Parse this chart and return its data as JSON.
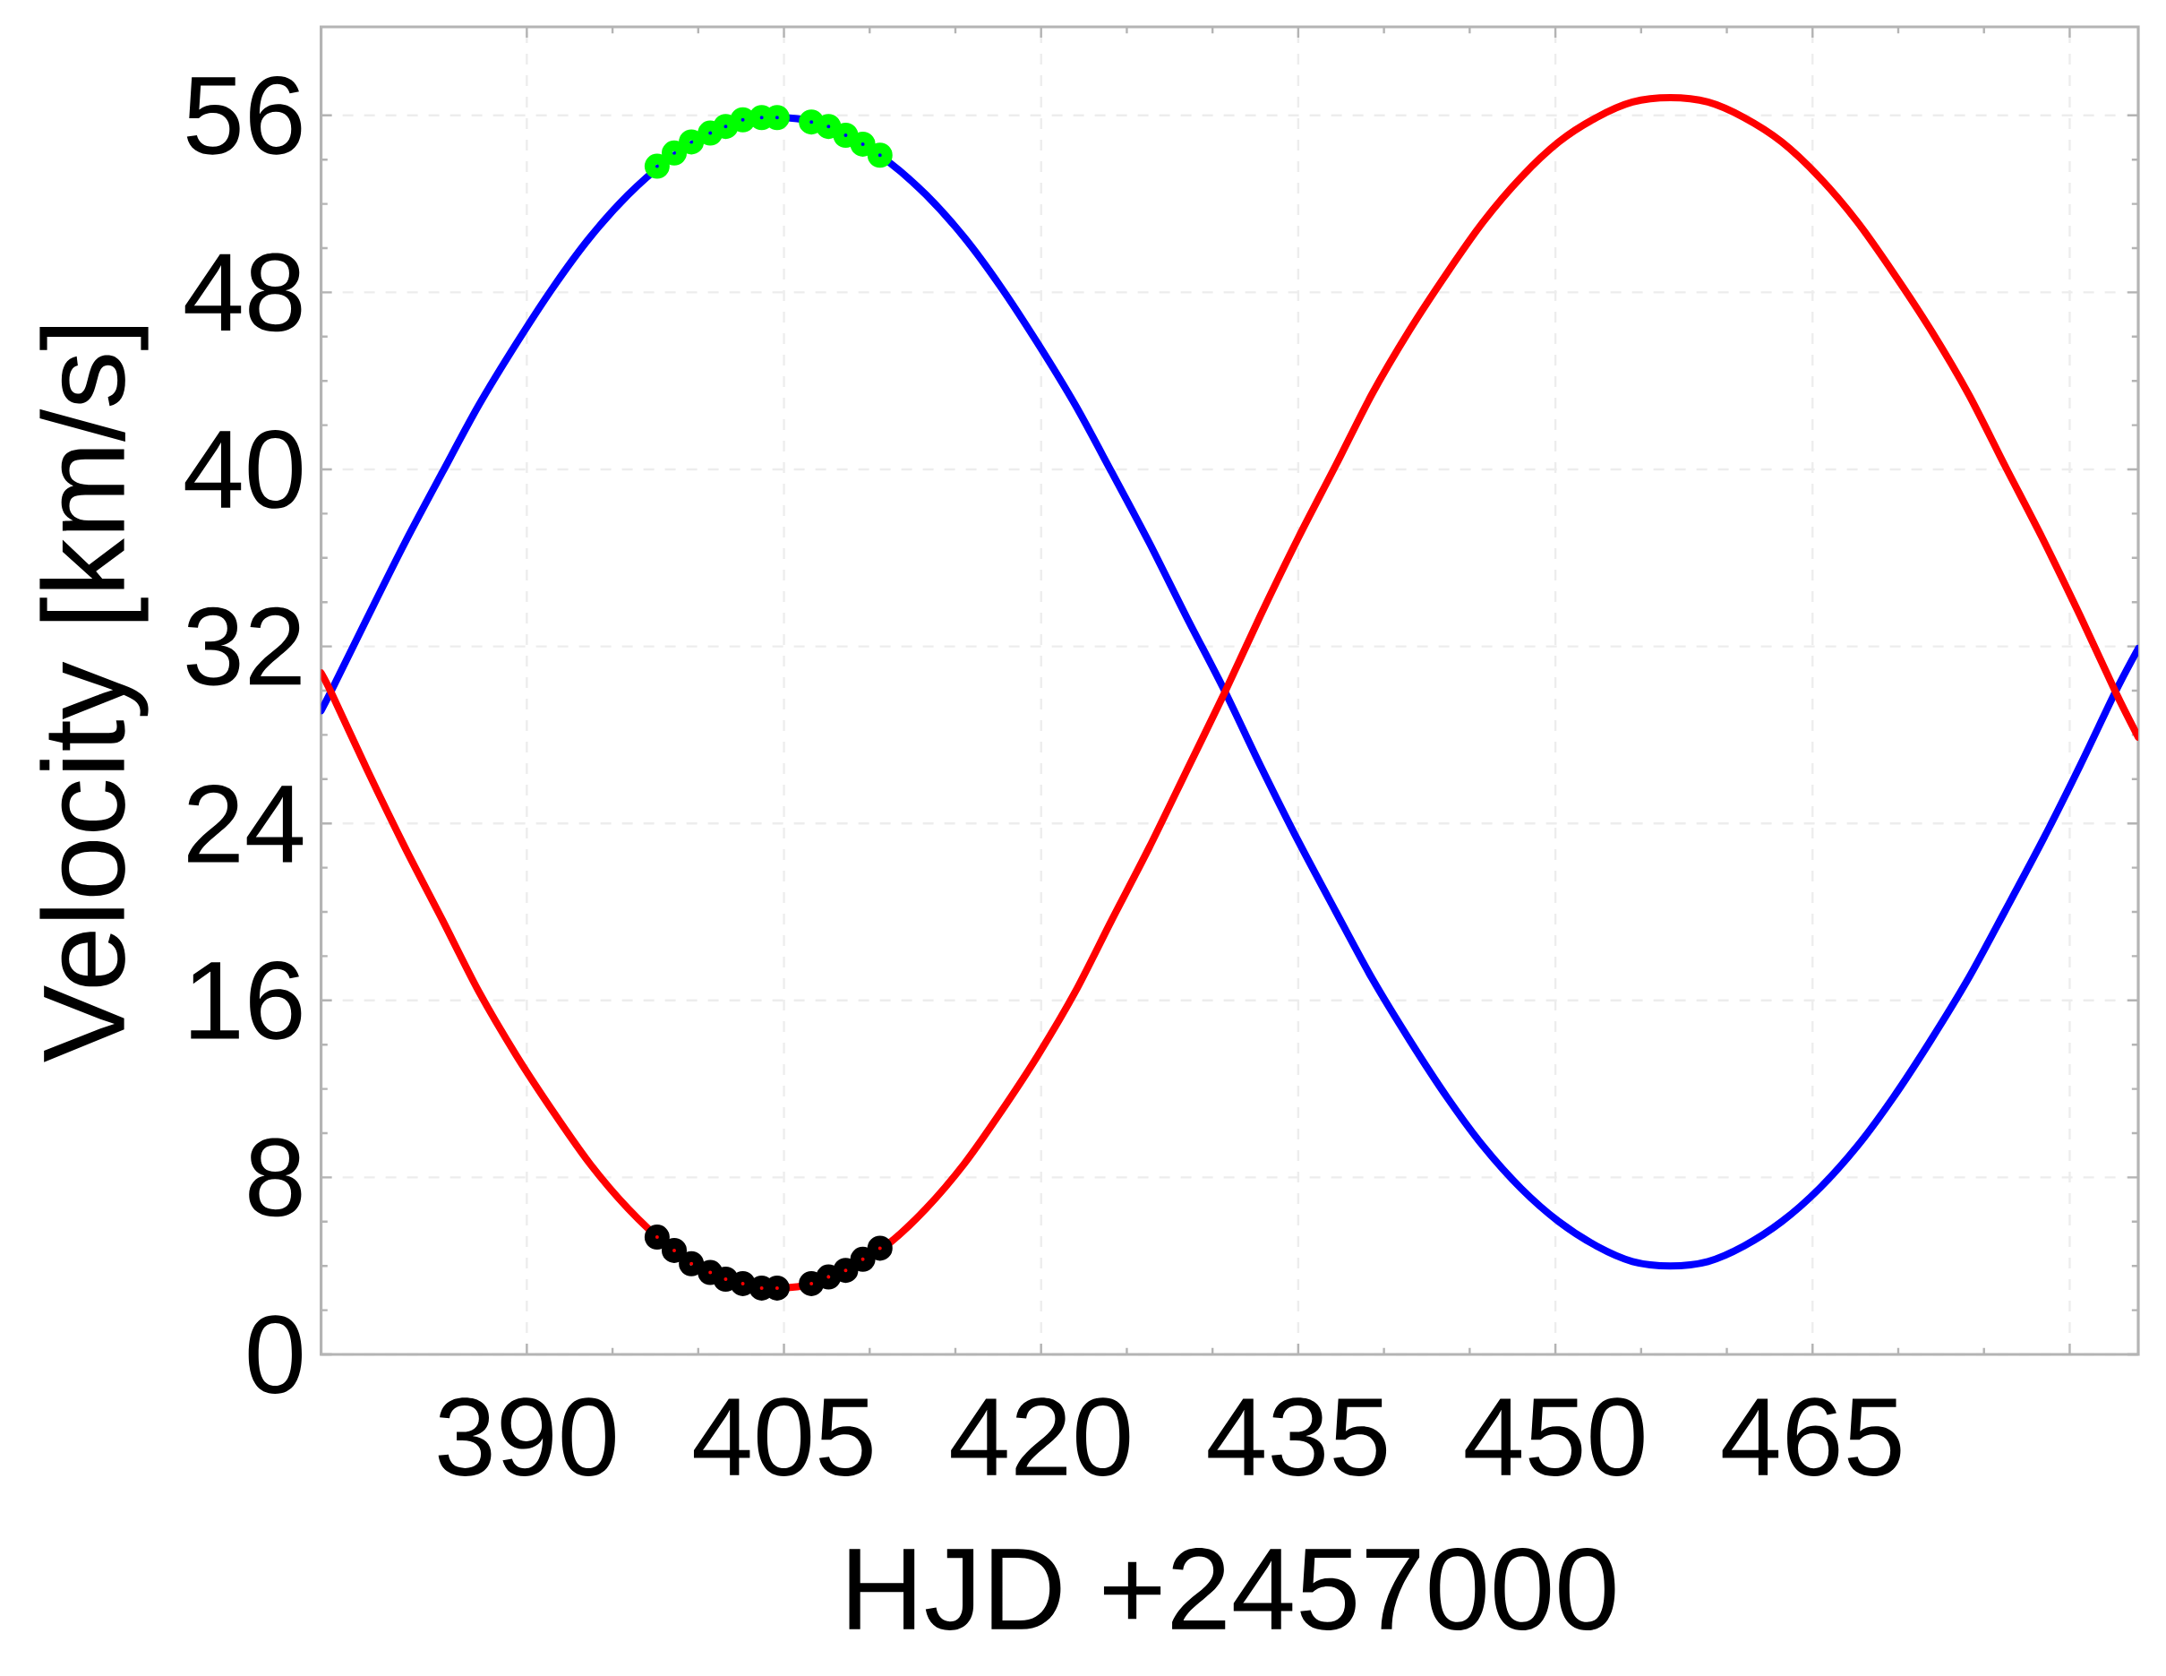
{
  "chart_data": {
    "type": "line",
    "xlabel": "HJD +2457000",
    "ylabel": "Velocity [km/s]",
    "xlim": [
      378,
      484
    ],
    "ylim": [
      0,
      60
    ],
    "xticks": [
      390,
      405,
      420,
      435,
      450,
      465,
      {
        "value": 480,
        "label": null
      }
    ],
    "yticks": [
      0,
      8,
      16,
      24,
      32,
      40,
      48,
      56
    ],
    "grid": true,
    "series": [
      {
        "color": "#0000ff",
        "marker": "none",
        "x": [
          378,
          378.6,
          380.7,
          382.9,
          385.1,
          387.2,
          389.4,
          391.6,
          393.7,
          395.9,
          398.1,
          400.3,
          402.4,
          404.6,
          406.8,
          408.9,
          411.1,
          413.3,
          415.5,
          417.6,
          419.8,
          422.0,
          424.1,
          426.3,
          428.5,
          430.7,
          432.8,
          435.0,
          437.2,
          439.3,
          441.5,
          443.7,
          445.8,
          448.0,
          450.2,
          452.4,
          454.5,
          456.7,
          458.9,
          461.0,
          463.2,
          465.4,
          467.6,
          469.7,
          471.9,
          474.1,
          476.2,
          478.4,
          480.6,
          482.7,
          484
        ],
        "values": [
          29.1,
          30.0,
          33.3,
          36.7,
          39.9,
          42.9,
          45.7,
          48.3,
          50.5,
          52.4,
          53.9,
          55.0,
          55.7,
          55.9,
          55.7,
          55.0,
          53.9,
          52.4,
          50.5,
          48.3,
          45.7,
          42.9,
          39.9,
          36.7,
          33.3,
          30.0,
          26.6,
          23.2,
          20.0,
          17.0,
          14.2,
          11.6,
          9.4,
          7.5,
          6.0,
          4.9,
          4.2,
          4.0,
          4.2,
          4.9,
          6.0,
          7.5,
          9.4,
          11.6,
          14.2,
          17.0,
          20.0,
          23.2,
          26.6,
          30.0,
          31.9
        ]
      },
      {
        "color": "#ff0000",
        "marker": "none",
        "x": [
          378,
          378.6,
          380.7,
          382.9,
          385.1,
          387.2,
          389.4,
          391.6,
          393.7,
          395.9,
          398.1,
          400.3,
          402.4,
          404.6,
          406.8,
          408.9,
          411.1,
          413.3,
          415.5,
          417.6,
          419.8,
          422.0,
          424.1,
          426.3,
          428.5,
          430.7,
          432.8,
          435.0,
          437.2,
          439.3,
          441.5,
          443.7,
          445.8,
          448.0,
          450.2,
          452.4,
          454.5,
          456.7,
          458.9,
          461.0,
          463.2,
          465.4,
          467.6,
          469.7,
          471.9,
          474.1,
          476.2,
          478.4,
          480.6,
          482.7,
          484
        ],
        "values": [
          30.8,
          29.9,
          26.4,
          22.9,
          19.6,
          16.4,
          13.5,
          10.9,
          8.6,
          6.6,
          5.0,
          3.9,
          3.2,
          3.0,
          3.2,
          3.9,
          5.0,
          6.6,
          8.6,
          10.9,
          13.5,
          16.4,
          19.6,
          22.9,
          26.4,
          29.9,
          33.4,
          36.9,
          40.2,
          43.4,
          46.3,
          48.9,
          51.2,
          53.2,
          54.8,
          55.9,
          56.6,
          56.8,
          56.6,
          55.9,
          54.8,
          53.2,
          51.2,
          48.9,
          46.3,
          43.4,
          40.2,
          36.9,
          33.4,
          29.9,
          27.9
        ]
      },
      {
        "type": "scatter",
        "color": "#00ff00",
        "marker": "circle",
        "x": [
          397.6,
          398.6,
          399.6,
          400.7,
          401.6,
          402.6,
          403.7,
          404.6,
          406.6,
          407.6,
          408.6,
          409.6,
          410.6
        ],
        "values": [
          53.7,
          54.3,
          54.8,
          55.2,
          55.5,
          55.8,
          55.9,
          55.9,
          55.7,
          55.5,
          55.1,
          54.7,
          54.2
        ]
      },
      {
        "type": "scatter",
        "color": "#000000",
        "marker": "circle",
        "x": [
          397.6,
          398.6,
          399.6,
          400.7,
          401.6,
          402.6,
          403.7,
          404.6,
          406.6,
          407.6,
          408.6,
          409.6,
          410.6
        ],
        "values": [
          5.3,
          4.7,
          4.1,
          3.7,
          3.4,
          3.2,
          3.0,
          3.0,
          3.2,
          3.5,
          3.8,
          4.3,
          4.8
        ]
      }
    ]
  }
}
